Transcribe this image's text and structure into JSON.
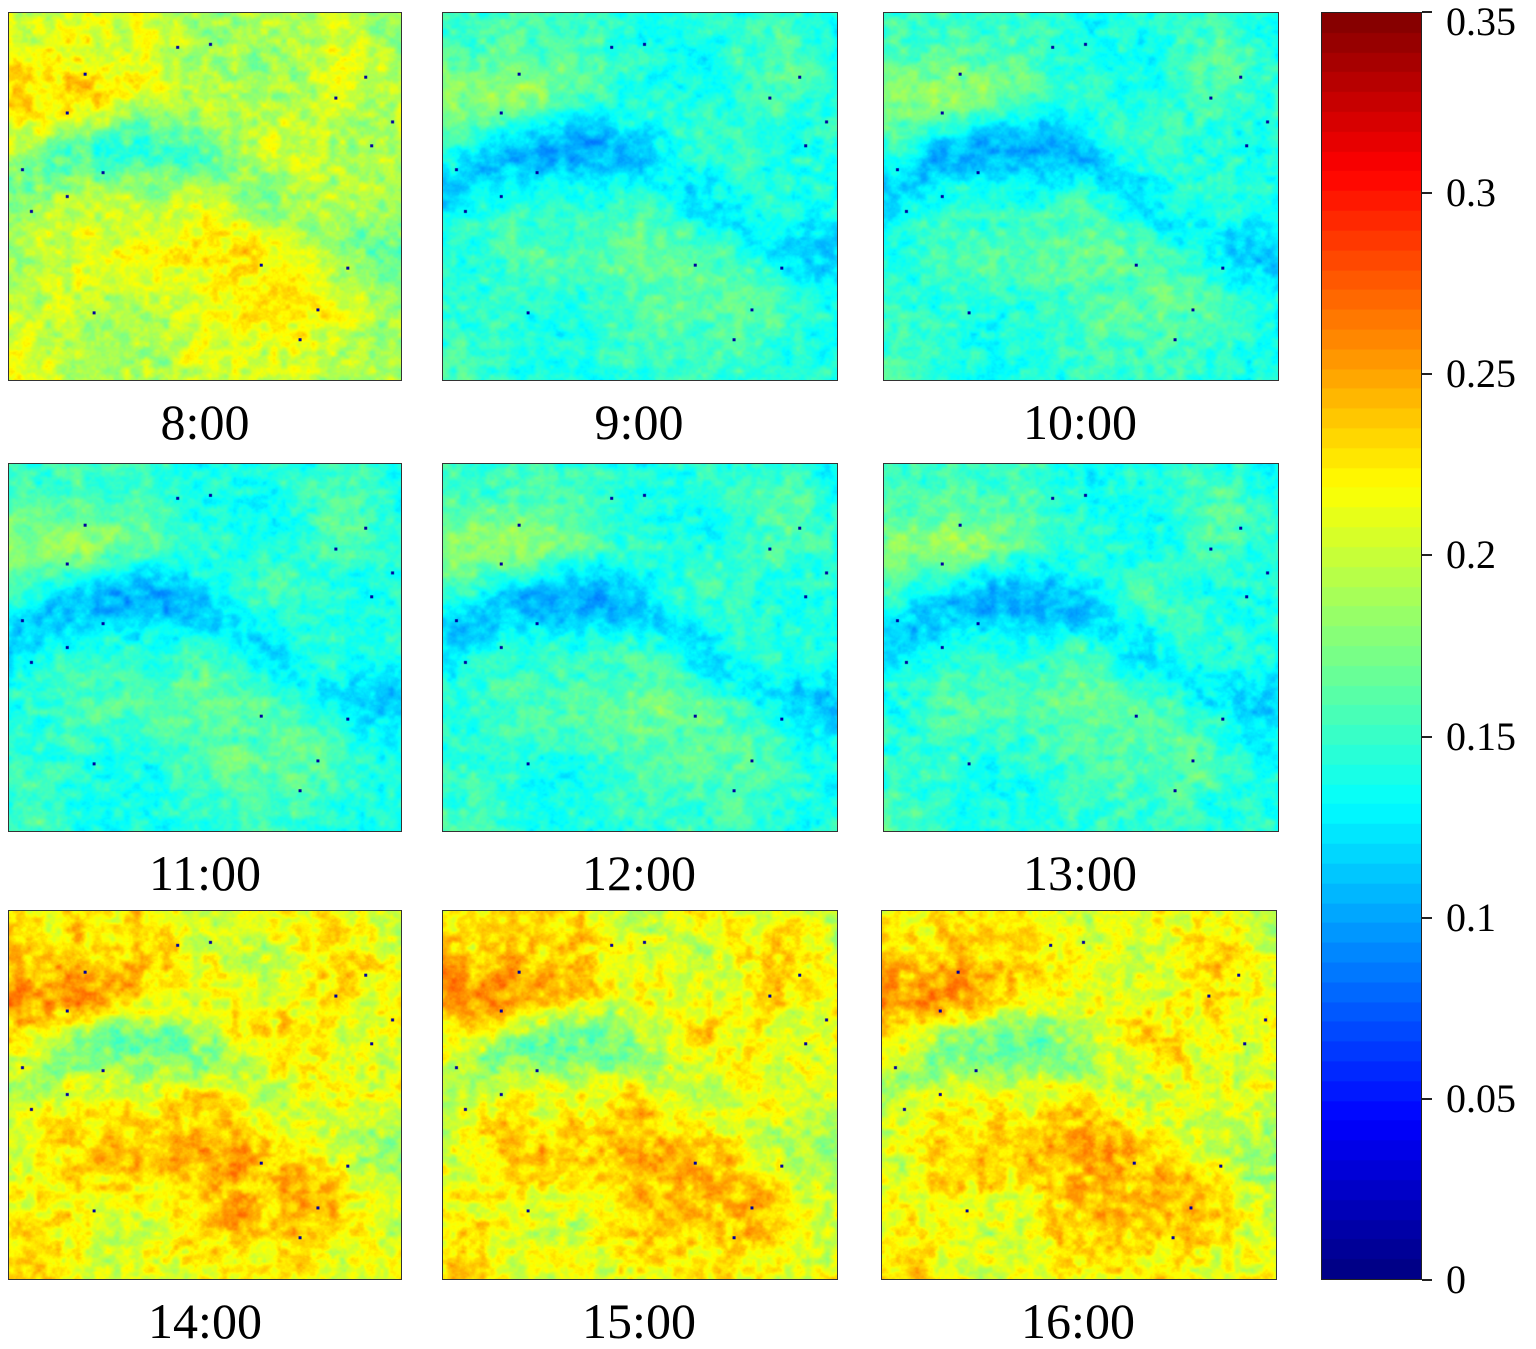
{
  "figure": {
    "panels": [
      {
        "time": "8:00",
        "tone": "warm-mid"
      },
      {
        "time": "9:00",
        "tone": "cool"
      },
      {
        "time": "10:00",
        "tone": "cool"
      },
      {
        "time": "11:00",
        "tone": "cool"
      },
      {
        "time": "12:00",
        "tone": "cool"
      },
      {
        "time": "13:00",
        "tone": "cool"
      },
      {
        "time": "14:00",
        "tone": "warm"
      },
      {
        "time": "15:00",
        "tone": "warm"
      },
      {
        "time": "16:00",
        "tone": "warm"
      }
    ],
    "colorbar": {
      "colormap": "jet",
      "range": [
        0,
        0.35
      ],
      "ticks": [
        {
          "value": 0,
          "label": "0"
        },
        {
          "value": 0.05,
          "label": "0.05"
        },
        {
          "value": 0.1,
          "label": "0.1"
        },
        {
          "value": 0.15,
          "label": "0.15"
        },
        {
          "value": 0.2,
          "label": "0.2"
        },
        {
          "value": 0.25,
          "label": "0.25"
        },
        {
          "value": 0.3,
          "label": "0.3"
        },
        {
          "value": 0.35,
          "label": "0.35"
        }
      ]
    }
  }
}
